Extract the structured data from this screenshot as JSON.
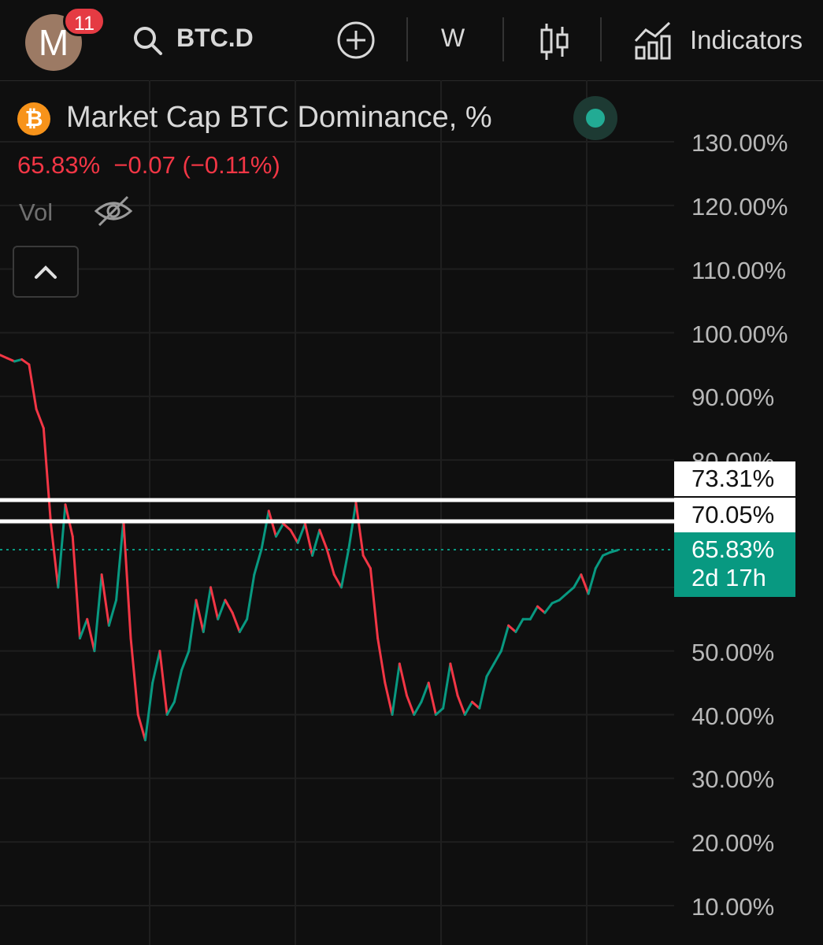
{
  "toolbar": {
    "avatar_letter": "M",
    "notification_count": "11",
    "symbol": "BTC.D",
    "interval": "W",
    "indicators_label": "Indicators"
  },
  "legend": {
    "title": "Market Cap BTC Dominance, %",
    "last_value": "65.83%",
    "change": "−0.07",
    "change_pct": "(−0.11%)",
    "vol_label": "Vol",
    "coin_symbol": "₿"
  },
  "price_scale": {
    "ticks": [
      "130.00%",
      "120.00%",
      "110.00%",
      "100.00%",
      "90.00%",
      "80.00%",
      "50.00%",
      "40.00%",
      "30.00%",
      "20.00%",
      "10.00%"
    ],
    "level_tags": [
      "73.31%",
      "70.05%"
    ],
    "last_price_tag": "65.83%",
    "countdown": "2d 17h"
  },
  "colors": {
    "background": "#0f0f0f",
    "up": "#089981",
    "down": "#f23645",
    "level_line": "#ffffff",
    "accent": "#f7931a"
  },
  "chart_data": {
    "type": "line",
    "title": "Market Cap BTC Dominance, %",
    "ylim": [
      10,
      130
    ],
    "horizontal_levels": [
      73.31,
      70.05
    ],
    "last_value": 65.83,
    "series": [
      {
        "values": [
          96.5,
          96.0,
          95.5,
          95.8,
          95.0,
          88.0,
          85.0,
          70.0,
          60.0,
          73.0,
          68.0,
          52.0,
          55.0,
          50.0,
          62.0,
          54.0,
          58.0,
          70.5,
          52.0,
          40.0,
          36.0,
          45.0,
          50.0,
          40.0,
          42.0,
          47.0,
          50.0,
          58.0,
          53.0,
          60.0,
          55.0,
          58.0,
          56.0,
          53.0,
          55.0,
          62.0,
          66.0,
          72.0,
          68.0,
          70.0,
          69.0,
          67.0,
          70.0,
          65.0,
          69.0,
          66.0,
          62.0,
          60.0,
          66.0,
          73.3,
          65.0,
          63.0,
          52.0,
          45.0,
          40.0,
          48.0,
          43.0,
          40.0,
          42.0,
          45.0,
          40.0,
          41.0,
          48.0,
          43.0,
          40.0,
          42.0,
          41.0,
          46.0,
          48.0,
          50.0,
          54.0,
          53.0,
          55.0,
          55.0,
          57.0,
          56.0,
          57.5,
          58.0,
          59.0,
          60.0,
          62.0,
          59.0,
          63.0,
          65.0,
          65.5,
          65.83
        ]
      }
    ]
  }
}
